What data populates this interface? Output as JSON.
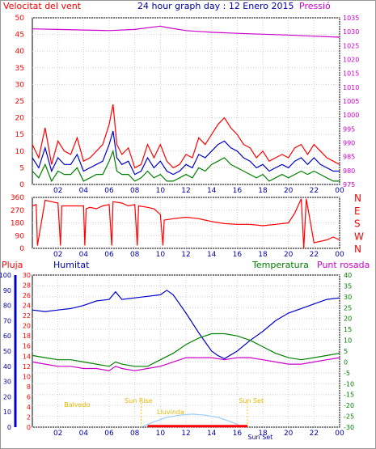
{
  "chart_data": [
    {
      "type": "line",
      "title": "24 hour graph day : 12 Enero 2015",
      "ylabel_left": "Velocitat del vent",
      "ylabel_right": "Pressió",
      "x_ticks": [
        "02",
        "04",
        "06",
        "08",
        "10",
        "12",
        "14",
        "16",
        "18",
        "20",
        "22",
        "00"
      ],
      "y_left_ticks": [
        0,
        5,
        10,
        15,
        20,
        25,
        30,
        35,
        40,
        45,
        50
      ],
      "y_left_lim": [
        0,
        50
      ],
      "y_right_ticks": [
        975,
        980,
        985,
        990,
        995,
        1000,
        1005,
        1010,
        1015,
        1020,
        1025,
        1030,
        1035
      ],
      "y_right_lim": [
        975,
        1035
      ],
      "grid": true,
      "colors": {
        "gust": "#ff0000",
        "wind_avg": "#0000cc",
        "wind_min": "#008000",
        "pressure": "#cc00cc"
      },
      "series": [
        {
          "name": "",
          "axis": "right",
          "color": "#cc00cc",
          "x": [
            0,
            2,
            4,
            6,
            8,
            10,
            10.5,
            12,
            14,
            16,
            18,
            20,
            22,
            24
          ],
          "y": [
            1031,
            1030.8,
            1030.6,
            1030.4,
            1030.8,
            1032,
            1031.5,
            1030.4,
            1029.8,
            1029.4,
            1029.1,
            1028.8,
            1028.4,
            1028.0
          ]
        },
        {
          "name": "",
          "axis": "left",
          "color": "#ff0000",
          "x": [
            0,
            0.5,
            1,
            1.5,
            2,
            2.5,
            3,
            3.5,
            4,
            4.5,
            5,
            5.5,
            6,
            6.3,
            6.6,
            7,
            7.5,
            8,
            8.5,
            9,
            9.5,
            10,
            10.5,
            11,
            11.5,
            12,
            12.5,
            13,
            13.5,
            14,
            14.5,
            15,
            15.5,
            16,
            16.5,
            17,
            17.5,
            18,
            18.5,
            19,
            19.5,
            20,
            20.5,
            21,
            21.5,
            22,
            22.5,
            23,
            23.5,
            24
          ],
          "y": [
            12,
            8,
            17,
            6,
            13,
            10,
            9,
            14,
            7,
            8,
            10,
            12,
            18,
            24,
            12,
            9,
            11,
            5,
            6,
            12,
            8,
            12,
            7,
            5,
            6,
            9,
            8,
            14,
            12,
            15,
            18,
            20,
            17,
            15,
            12,
            11,
            8,
            10,
            7,
            8,
            9,
            8,
            11,
            12,
            9,
            12,
            10,
            8,
            7,
            6
          ]
        },
        {
          "name": "",
          "axis": "left",
          "color": "#0000cc",
          "x": [
            0,
            0.5,
            1,
            1.5,
            2,
            2.5,
            3,
            3.5,
            4,
            4.5,
            5,
            5.5,
            6,
            6.3,
            6.6,
            7,
            7.5,
            8,
            8.5,
            9,
            9.5,
            10,
            10.5,
            11,
            11.5,
            12,
            12.5,
            13,
            13.5,
            14,
            14.5,
            15,
            15.5,
            16,
            16.5,
            17,
            17.5,
            18,
            18.5,
            19,
            19.5,
            20,
            20.5,
            21,
            21.5,
            22,
            22.5,
            23,
            23.5,
            24
          ],
          "y": [
            8,
            5,
            11,
            4,
            8,
            6,
            6,
            9,
            4,
            5,
            6,
            7,
            12,
            16,
            8,
            6,
            7,
            3,
            4,
            8,
            5,
            7,
            4,
            3,
            4,
            6,
            5,
            9,
            8,
            10,
            12,
            13,
            11,
            10,
            8,
            7,
            5,
            6,
            4,
            5,
            6,
            5,
            7,
            8,
            6,
            8,
            6,
            5,
            4,
            4
          ]
        },
        {
          "name": "",
          "axis": "left",
          "color": "#008000",
          "x": [
            0,
            0.5,
            1,
            1.5,
            2,
            2.5,
            3,
            3.5,
            4,
            4.5,
            5,
            5.5,
            6,
            6.3,
            6.6,
            7,
            7.5,
            8,
            8.5,
            9,
            9.5,
            10,
            10.5,
            11,
            11.5,
            12,
            12.5,
            13,
            13.5,
            14,
            14.5,
            15,
            15.5,
            16,
            16.5,
            17,
            17.5,
            18,
            18.5,
            19,
            19.5,
            20,
            20.5,
            21,
            21.5,
            22,
            22.5,
            23,
            23.5,
            24
          ],
          "y": [
            4,
            2,
            6,
            1,
            4,
            3,
            3,
            5,
            1,
            2,
            3,
            3,
            7,
            10,
            4,
            3,
            3,
            1,
            2,
            4,
            2,
            3,
            1,
            1,
            2,
            3,
            2,
            5,
            4,
            6,
            7,
            8,
            6,
            5,
            4,
            3,
            2,
            3,
            1,
            2,
            3,
            2,
            3,
            4,
            3,
            4,
            3,
            2,
            1,
            1
          ]
        }
      ]
    },
    {
      "type": "line",
      "y_lim": [
        0,
        360
      ],
      "y_ticks": [
        0,
        90,
        180,
        270,
        360
      ],
      "y_right_labels": [
        "N",
        "W",
        "S",
        "E",
        "N"
      ],
      "x_ticks": [
        "02",
        "04",
        "06",
        "08",
        "10",
        "12",
        "14",
        "16",
        "18",
        "20",
        "22",
        "00"
      ],
      "series": [
        {
          "name": "",
          "color": "#ff0000",
          "x": [
            0,
            0.3,
            0.4,
            1,
            1.5,
            2,
            2.2,
            2.3,
            4,
            4.1,
            4.2,
            4.5,
            5,
            5.5,
            6,
            6.2,
            6.3,
            7,
            7.5,
            8,
            8.2,
            8.3,
            9,
            9.5,
            10,
            10.2,
            10.3,
            11,
            12,
            13,
            14,
            15,
            16,
            17,
            18,
            19,
            20,
            20.5,
            21,
            21.2,
            21.4,
            22,
            22.5,
            23,
            23.5,
            24
          ],
          "y": [
            300,
            310,
            20,
            340,
            330,
            320,
            20,
            300,
            300,
            20,
            280,
            290,
            280,
            300,
            310,
            20,
            330,
            320,
            300,
            310,
            20,
            300,
            290,
            280,
            240,
            20,
            200,
            210,
            220,
            210,
            190,
            175,
            170,
            170,
            160,
            170,
            180,
            250,
            350,
            0,
            350,
            40,
            50,
            60,
            80,
            60
          ]
        }
      ]
    },
    {
      "type": "line",
      "ylabel_left": "Pluja",
      "ylabel_left2": "Humitat",
      "ylabel_right": "Temperatura",
      "ylabel_right2": "Punt rosada",
      "y_pluja_ticks": [
        0,
        2,
        4,
        6,
        8,
        10,
        12,
        14,
        16,
        18,
        20,
        22,
        24,
        26,
        28,
        30
      ],
      "y_humitat_ticks": [
        0,
        10,
        20,
        30,
        40,
        50,
        60,
        70,
        80,
        90,
        100
      ],
      "y_temp_ticks": [
        -30,
        -25,
        -20,
        -15,
        -10,
        -5,
        0,
        5,
        10,
        15,
        20,
        25,
        30,
        35,
        40
      ],
      "y_temp_lim": [
        -30,
        40
      ],
      "x_ticks": [
        "02",
        "04",
        "06",
        "08",
        "10",
        "12",
        "14",
        "16",
        "18",
        "20",
        "22",
        "00"
      ],
      "annotations": [
        "Balvedo",
        "Sun Rise",
        "Lluvinda",
        "Sun Set",
        "Sun Set"
      ],
      "series": [
        {
          "name": "Humitat",
          "axis": "humitat",
          "color": "#0000cc",
          "x": [
            0,
            1,
            2,
            3,
            4,
            5,
            6,
            6.5,
            7,
            8,
            9,
            10,
            10.5,
            11,
            12,
            13,
            14,
            14.5,
            15,
            16,
            17,
            18,
            19,
            20,
            21,
            22,
            23,
            24
          ],
          "y": [
            77,
            76,
            77,
            78,
            80,
            83,
            84,
            89,
            84,
            85,
            86,
            87,
            90,
            87,
            75,
            62,
            50,
            47,
            45,
            50,
            57,
            63,
            70,
            75,
            78,
            81,
            84,
            85
          ]
        },
        {
          "name": "Temperatura",
          "axis": "temp",
          "color": "#008000",
          "x": [
            0,
            1,
            2,
            3,
            4,
            5,
            6,
            6.5,
            7,
            8,
            9,
            10,
            11,
            12,
            13,
            14,
            15,
            16,
            17,
            18,
            19,
            20,
            21,
            22,
            23,
            24
          ],
          "y": [
            3,
            2,
            1,
            1,
            0,
            -1,
            -2,
            0,
            -1,
            -2,
            -2,
            1,
            4,
            8,
            11,
            13,
            13,
            12,
            10,
            7,
            4,
            2,
            1,
            2,
            3,
            4
          ]
        },
        {
          "name": "Punt rosada",
          "axis": "temp",
          "color": "#cc00cc",
          "x": [
            0,
            1,
            2,
            3,
            4,
            5,
            6,
            6.5,
            7,
            8,
            9,
            10,
            11,
            12,
            13,
            14,
            15,
            16,
            17,
            18,
            19,
            20,
            21,
            22,
            23,
            24
          ],
          "y": [
            0,
            -1,
            -2,
            -2,
            -3,
            -3,
            -4,
            -2,
            -3,
            -4,
            -3,
            -2,
            0,
            2,
            2,
            2,
            1,
            2,
            2,
            1,
            0,
            -1,
            -1,
            0,
            1,
            2
          ]
        },
        {
          "name": "",
          "axis": "temp",
          "color": "#99ccff",
          "x": [
            8.5,
            9.5,
            10.5,
            11.5,
            12.5,
            13.5,
            14.5,
            15.5,
            16.5
          ],
          "y": [
            -30,
            -27.5,
            -25.5,
            -24.5,
            -24,
            -24.5,
            -25.5,
            -27.5,
            -30
          ]
        },
        {
          "name": "Pluja",
          "axis": "pluja",
          "color": "#ff0000",
          "x": [
            9,
            16.8
          ],
          "y": [
            0.2,
            0.2
          ]
        }
      ]
    }
  ]
}
